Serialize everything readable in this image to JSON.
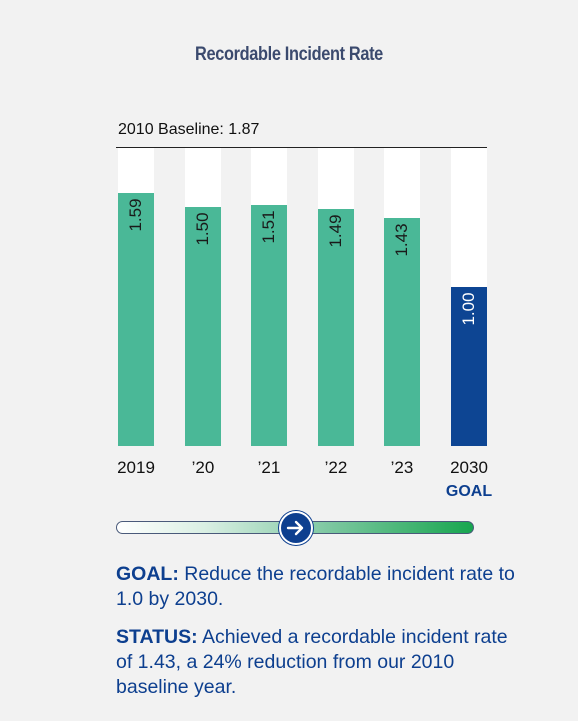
{
  "title": "Recordable Incident Rate",
  "baseline_label": "2010 Baseline: 1.87",
  "chart_data": {
    "type": "bar",
    "title": "Recordable Incident Rate",
    "categories": [
      "2019",
      "’20",
      "’21",
      "’22",
      "’23",
      "2030"
    ],
    "values": [
      1.59,
      1.5,
      1.51,
      1.49,
      1.43,
      1.0
    ],
    "value_labels": [
      "1.59",
      "1.50",
      "1.51",
      "1.49",
      "1.43",
      "1.00"
    ],
    "goal_index": 5,
    "goal_sublabel": "GOAL",
    "baseline": 1.87,
    "ylim": [
      0,
      1.87
    ],
    "colors": {
      "actual": "#4ab897",
      "goal": "#0d4593",
      "track": "#ffffff"
    }
  },
  "progress": {
    "fraction": 0.5,
    "icon": "arrow-right-icon"
  },
  "goal": {
    "label": "GOAL:",
    "text": " Reduce the recordable incident rate to 1.0 by 2030."
  },
  "status": {
    "label": "STATUS:",
    "text": " Achieved a recordable incident rate of 1.43, a 24% reduction from our 2010 baseline year."
  }
}
